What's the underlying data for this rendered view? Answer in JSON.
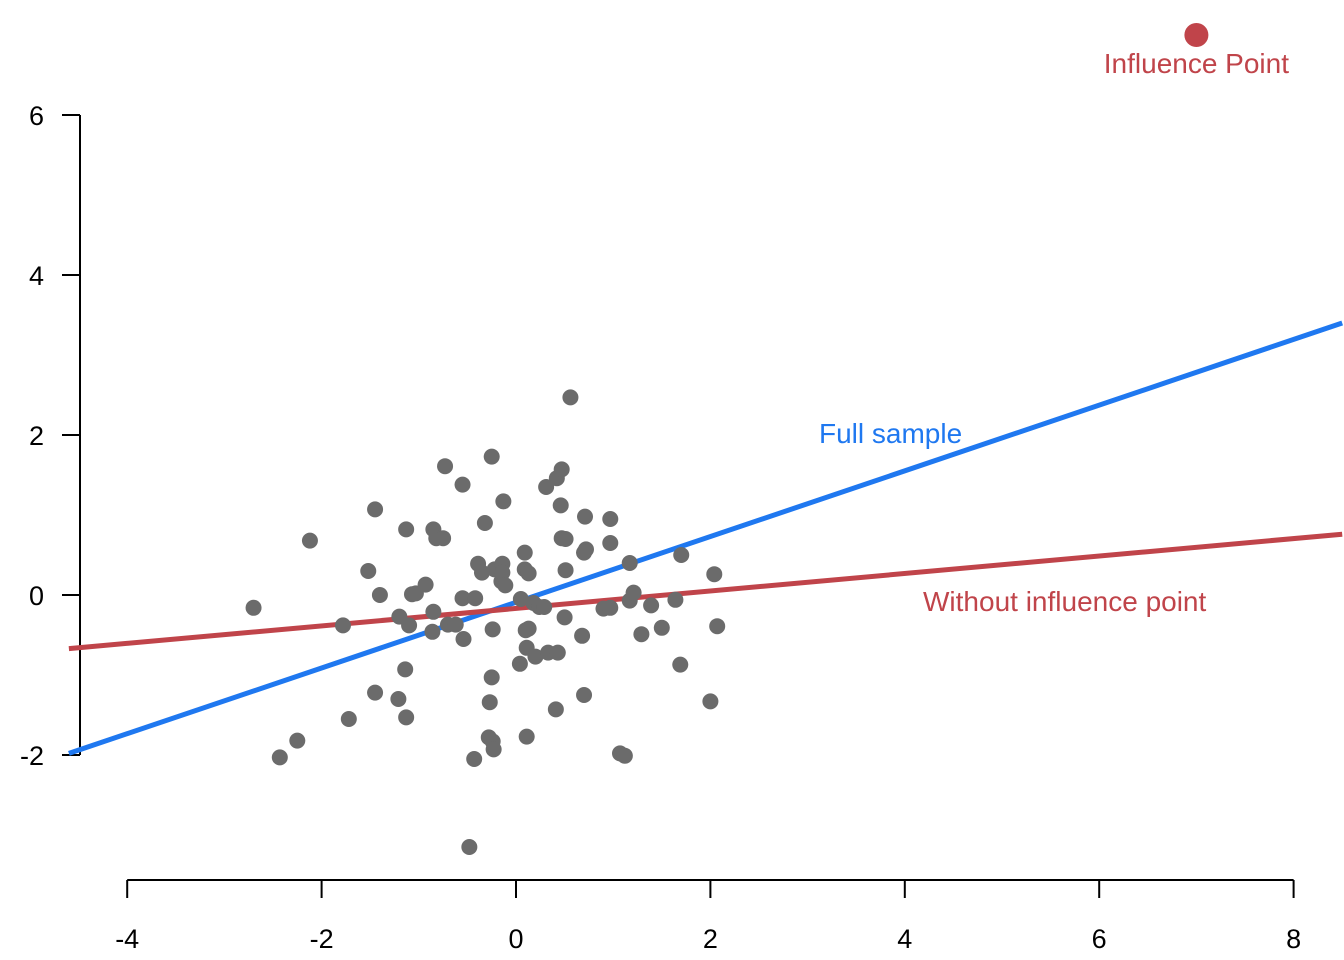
{
  "chart_data": {
    "type": "scatter",
    "title": "",
    "xlabel": "",
    "ylabel": "",
    "xlim": [
      -4.8,
      8.5
    ],
    "ylim": [
      -3.5,
      7.5
    ],
    "x_ticks": [
      -4,
      -2,
      0,
      2,
      4,
      6,
      8
    ],
    "x_tick_labels": [
      "-4",
      "-2",
      "0",
      "2",
      "4",
      "6",
      "8"
    ],
    "y_ticks": [
      -2,
      0,
      2,
      4,
      6
    ],
    "y_tick_labels": [
      "-2",
      "0",
      "2",
      "4",
      "6"
    ],
    "grid": false,
    "legend": "none",
    "series": [
      {
        "color": "#6b6b6b",
        "points": [
          [
            -2.7,
            -0.16
          ],
          [
            -2.12,
            0.68
          ],
          [
            -1.78,
            -0.38
          ],
          [
            -1.52,
            0.3
          ],
          [
            -1.45,
            1.07
          ],
          [
            -1.4,
            0.0
          ],
          [
            -1.45,
            -1.22
          ],
          [
            -1.72,
            -1.55
          ],
          [
            -2.25,
            -1.82
          ],
          [
            -2.43,
            -2.03
          ],
          [
            -1.2,
            -0.27
          ],
          [
            -1.13,
            0.82
          ],
          [
            -1.1,
            -0.38
          ],
          [
            -1.07,
            0.01
          ],
          [
            -1.03,
            0.02
          ],
          [
            -0.93,
            0.13
          ],
          [
            -0.85,
            0.82
          ],
          [
            -0.82,
            0.71
          ],
          [
            -0.75,
            0.71
          ],
          [
            -0.73,
            1.61
          ],
          [
            -0.85,
            -0.21
          ],
          [
            -0.86,
            -0.46
          ],
          [
            -0.7,
            -0.37
          ],
          [
            -0.62,
            -0.37
          ],
          [
            -0.55,
            1.38
          ],
          [
            -0.55,
            -0.04
          ],
          [
            -0.42,
            -0.04
          ],
          [
            -0.54,
            -0.55
          ],
          [
            -0.39,
            0.39
          ],
          [
            -0.35,
            0.28
          ],
          [
            -0.32,
            0.9
          ],
          [
            -0.25,
            1.73
          ],
          [
            -0.22,
            0.32
          ],
          [
            -0.14,
            0.39
          ],
          [
            -0.15,
            0.17
          ],
          [
            -0.14,
            0.28
          ],
          [
            -0.11,
            0.12
          ],
          [
            -0.13,
            1.17
          ],
          [
            -0.24,
            -0.43
          ],
          [
            -0.27,
            -1.34
          ],
          [
            -0.25,
            -1.03
          ],
          [
            -0.28,
            -1.78
          ],
          [
            -0.24,
            -1.83
          ],
          [
            -0.23,
            -1.93
          ],
          [
            -0.43,
            -2.05
          ],
          [
            -1.14,
            -0.93
          ],
          [
            -1.21,
            -1.3
          ],
          [
            -1.13,
            -1.53
          ],
          [
            -0.48,
            -3.15
          ],
          [
            0.05,
            -0.05
          ],
          [
            0.09,
            0.53
          ],
          [
            0.09,
            0.32
          ],
          [
            0.13,
            0.27
          ],
          [
            0.13,
            -0.42
          ],
          [
            0.18,
            -0.1
          ],
          [
            0.24,
            -0.15
          ],
          [
            0.29,
            -0.15
          ],
          [
            0.1,
            -0.44
          ],
          [
            0.11,
            -0.66
          ],
          [
            0.04,
            -0.86
          ],
          [
            0.2,
            -0.77
          ],
          [
            0.33,
            -0.72
          ],
          [
            0.43,
            -0.72
          ],
          [
            0.31,
            1.35
          ],
          [
            0.42,
            1.46
          ],
          [
            0.47,
            1.57
          ],
          [
            0.46,
            1.12
          ],
          [
            0.47,
            0.71
          ],
          [
            0.51,
            0.7
          ],
          [
            0.51,
            0.31
          ],
          [
            0.5,
            -0.28
          ],
          [
            0.56,
            2.47
          ],
          [
            0.71,
            0.98
          ],
          [
            0.72,
            0.57
          ],
          [
            0.7,
            0.53
          ],
          [
            0.68,
            -0.51
          ],
          [
            0.7,
            -1.25
          ],
          [
            0.41,
            -1.43
          ],
          [
            0.11,
            -1.77
          ],
          [
            0.9,
            -0.17
          ],
          [
            0.97,
            -0.16
          ],
          [
            0.97,
            0.95
          ],
          [
            0.97,
            0.65
          ],
          [
            1.17,
            0.4
          ],
          [
            1.17,
            -0.07
          ],
          [
            1.21,
            0.03
          ],
          [
            1.29,
            -0.49
          ],
          [
            1.39,
            -0.13
          ],
          [
            1.5,
            -0.41
          ],
          [
            1.64,
            -0.06
          ],
          [
            1.7,
            0.5
          ],
          [
            1.69,
            -0.87
          ],
          [
            2.04,
            0.26
          ],
          [
            2.07,
            -0.39
          ],
          [
            2.0,
            -1.33
          ],
          [
            1.07,
            -1.98
          ],
          [
            1.12,
            -2.01
          ]
        ]
      }
    ],
    "influence_point": {
      "x": 7.0,
      "y": 7.0,
      "label": "Influence Point",
      "color": "#c0444a"
    },
    "regression_lines": [
      {
        "label": "Full sample",
        "color": "#1f78f0",
        "x": [
          -4.6,
          8.5
        ],
        "y": [
          -1.98,
          3.4
        ]
      },
      {
        "label": "Without influence point",
        "color": "#c0444a",
        "x": [
          -4.6,
          8.5
        ],
        "y": [
          -0.67,
          0.76
        ]
      }
    ],
    "axis_color": "#000000"
  }
}
